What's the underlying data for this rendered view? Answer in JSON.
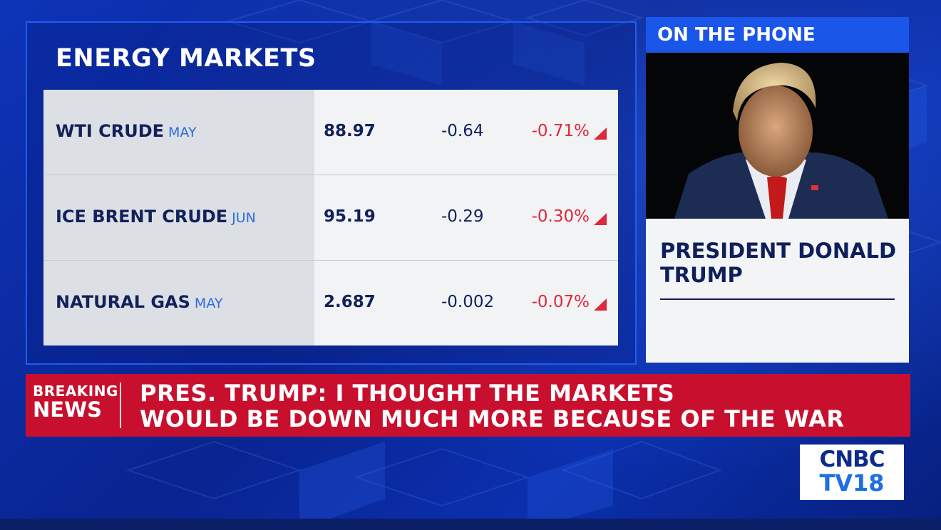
{
  "energy_markets": {
    "title": "ENERGY MARKETS",
    "rows": [
      {
        "name": "WTI CRUDE",
        "month": "MAY",
        "price": "88.97",
        "change": "-0.64",
        "pct": "-0.71%"
      },
      {
        "name": "ICE BRENT CRUDE",
        "month": "JUN",
        "price": "95.19",
        "change": "-0.29",
        "pct": "-0.30%"
      },
      {
        "name": "NATURAL GAS",
        "month": "MAY",
        "price": "2.687",
        "change": "-0.002",
        "pct": "-0.07%"
      }
    ]
  },
  "phone_panel": {
    "header": "ON THE PHONE",
    "caller_name": "PRESIDENT DONALD TRUMP"
  },
  "breaking_news": {
    "tag_line1": "BREAKING",
    "tag_line2": "NEWS",
    "headline_line1": "PRES. TRUMP: I THOUGHT THE MARKETS",
    "headline_line2": "WOULD BE DOWN MUCH MORE BECAUSE OF THE WAR"
  },
  "logo": {
    "line1": "CNBC",
    "line2": "TV18"
  },
  "colors": {
    "background_blue": "#0a2a9e",
    "accent_blue": "#1a56e8",
    "breaking_red": "#c8102e",
    "negative_red": "#e0283c",
    "navy_text": "#12215a"
  }
}
